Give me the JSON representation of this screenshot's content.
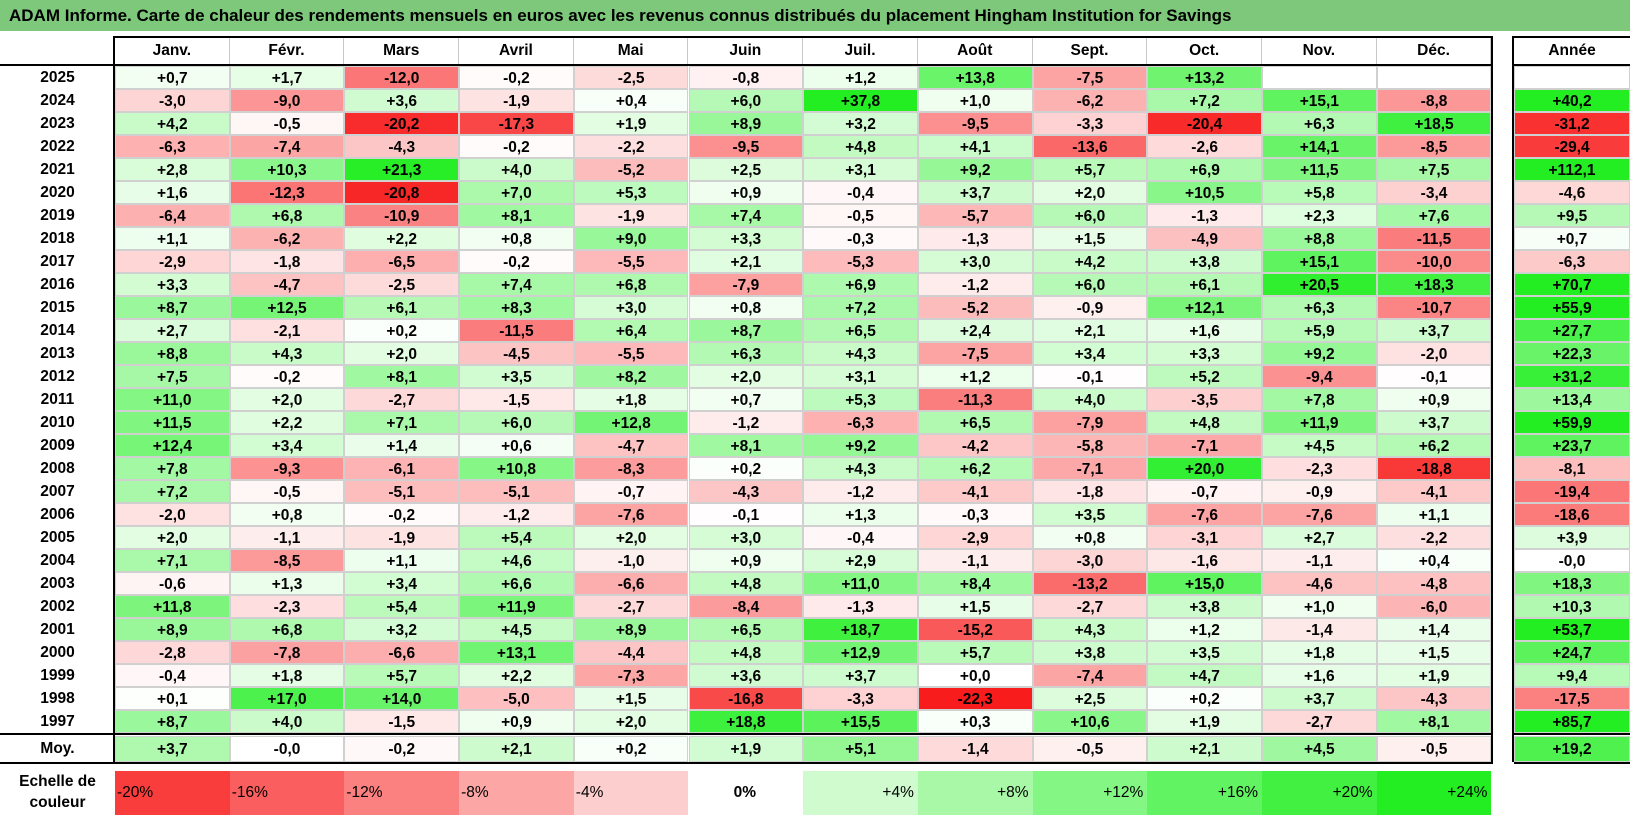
{
  "title": "ADAM Informe. Carte de chaleur des rendements mensuels en euros avec les revenus connus distribués du placement Hingham Institution for Savings",
  "chart_data": {
    "type": "heatmap",
    "title": "ADAM Informe. Carte de chaleur des rendements mensuels en euros avec les revenus connus distribués du placement Hingham Institution for Savings",
    "months": [
      "Janv.",
      "Févr.",
      "Mars",
      "Avril",
      "Mai",
      "Juin",
      "Juil.",
      "Août",
      "Sept.",
      "Oct.",
      "Nov.",
      "Déc."
    ],
    "year_header": "Année",
    "rows": [
      {
        "year": "2025",
        "values": [
          "+0,7",
          "+1,7",
          "-12,0",
          "-0,2",
          "-2,5",
          "-0,8",
          "+1,2",
          "+13,8",
          "-7,5",
          "+13,2",
          "",
          ""
        ],
        "annual": ""
      },
      {
        "year": "2024",
        "values": [
          "-3,0",
          "-9,0",
          "+3,6",
          "-1,9",
          "+0,4",
          "+6,0",
          "+37,8",
          "+1,0",
          "-6,2",
          "+7,2",
          "+15,1",
          "-8,8"
        ],
        "annual": "+40,2"
      },
      {
        "year": "2023",
        "values": [
          "+4,2",
          "-0,5",
          "-20,2",
          "-17,3",
          "+1,9",
          "+8,9",
          "+3,2",
          "-9,5",
          "-3,3",
          "-20,4",
          "+6,3",
          "+18,5"
        ],
        "annual": "-31,2"
      },
      {
        "year": "2022",
        "values": [
          "-6,3",
          "-7,4",
          "-4,3",
          "-0,2",
          "-2,2",
          "-9,5",
          "+4,8",
          "+4,1",
          "-13,6",
          "-2,6",
          "+14,1",
          "-8,5"
        ],
        "annual": "-29,4"
      },
      {
        "year": "2021",
        "values": [
          "+2,8",
          "+10,3",
          "+21,3",
          "+4,0",
          "-5,2",
          "+2,5",
          "+3,1",
          "+9,2",
          "+5,7",
          "+6,9",
          "+11,5",
          "+7,5"
        ],
        "annual": "+112,1"
      },
      {
        "year": "2020",
        "values": [
          "+1,6",
          "-12,3",
          "-20,8",
          "+7,0",
          "+5,3",
          "+0,9",
          "-0,4",
          "+3,7",
          "+2,0",
          "+10,5",
          "+5,8",
          "-3,4"
        ],
        "annual": "-4,6"
      },
      {
        "year": "2019",
        "values": [
          "-6,4",
          "+6,8",
          "-10,9",
          "+8,1",
          "-1,9",
          "+7,4",
          "-0,5",
          "-5,7",
          "+6,0",
          "-1,3",
          "+2,3",
          "+7,6"
        ],
        "annual": "+9,5"
      },
      {
        "year": "2018",
        "values": [
          "+1,1",
          "-6,2",
          "+2,2",
          "+0,8",
          "+9,0",
          "+3,3",
          "-0,3",
          "-1,3",
          "+1,5",
          "-4,9",
          "+8,8",
          "-11,5"
        ],
        "annual": "+0,7"
      },
      {
        "year": "2017",
        "values": [
          "-2,9",
          "-1,8",
          "-6,5",
          "-0,2",
          "-5,5",
          "+2,1",
          "-5,3",
          "+3,0",
          "+4,2",
          "+3,8",
          "+15,1",
          "-10,0"
        ],
        "annual": "-6,3"
      },
      {
        "year": "2016",
        "values": [
          "+3,3",
          "-4,7",
          "-2,5",
          "+7,4",
          "+6,8",
          "-7,9",
          "+6,9",
          "-1,2",
          "+6,0",
          "+6,1",
          "+20,5",
          "+18,3"
        ],
        "annual": "+70,7"
      },
      {
        "year": "2015",
        "values": [
          "+8,7",
          "+12,5",
          "+6,1",
          "+8,3",
          "+3,0",
          "+0,8",
          "+7,2",
          "-5,2",
          "-0,9",
          "+12,1",
          "+6,3",
          "-10,7"
        ],
        "annual": "+55,9"
      },
      {
        "year": "2014",
        "values": [
          "+2,7",
          "-2,1",
          "+0,2",
          "-11,5",
          "+6,4",
          "+8,7",
          "+6,5",
          "+2,4",
          "+2,1",
          "+1,6",
          "+5,9",
          "+3,7"
        ],
        "annual": "+27,7"
      },
      {
        "year": "2013",
        "values": [
          "+8,8",
          "+4,3",
          "+2,0",
          "-4,5",
          "-5,5",
          "+6,3",
          "+4,3",
          "-7,5",
          "+3,4",
          "+3,3",
          "+9,2",
          "-2,0"
        ],
        "annual": "+22,3"
      },
      {
        "year": "2012",
        "values": [
          "+7,5",
          "-0,2",
          "+8,1",
          "+3,5",
          "+8,2",
          "+2,0",
          "+3,1",
          "+1,2",
          "-0,1",
          "+5,2",
          "-9,4",
          "-0,1"
        ],
        "annual": "+31,2"
      },
      {
        "year": "2011",
        "values": [
          "+11,0",
          "+2,0",
          "-2,7",
          "-1,5",
          "+1,8",
          "+0,7",
          "+5,3",
          "-11,3",
          "+4,0",
          "-3,5",
          "+7,8",
          "+0,9"
        ],
        "annual": "+13,4"
      },
      {
        "year": "2010",
        "values": [
          "+11,5",
          "+2,2",
          "+7,1",
          "+6,0",
          "+12,8",
          "-1,2",
          "-6,3",
          "+6,5",
          "-7,9",
          "+4,8",
          "+11,9",
          "+3,7"
        ],
        "annual": "+59,9"
      },
      {
        "year": "2009",
        "values": [
          "+12,4",
          "+3,4",
          "+1,4",
          "+0,6",
          "-4,7",
          "+8,1",
          "+9,2",
          "-4,2",
          "-5,8",
          "-7,1",
          "+4,5",
          "+6,2"
        ],
        "annual": "+23,7"
      },
      {
        "year": "2008",
        "values": [
          "+7,8",
          "-9,3",
          "-6,1",
          "+10,8",
          "-8,3",
          "+0,2",
          "+4,3",
          "+6,2",
          "-7,1",
          "+20,0",
          "-2,3",
          "-18,8"
        ],
        "annual": "-8,1"
      },
      {
        "year": "2007",
        "values": [
          "+7,2",
          "-0,5",
          "-5,1",
          "-5,1",
          "-0,7",
          "-4,3",
          "-1,2",
          "-4,1",
          "-1,8",
          "-0,7",
          "-0,9",
          "-4,1"
        ],
        "annual": "-19,4"
      },
      {
        "year": "2006",
        "values": [
          "-2,0",
          "+0,8",
          "-0,2",
          "-1,2",
          "-7,6",
          "-0,1",
          "+1,3",
          "-0,3",
          "+3,5",
          "-7,6",
          "-7,6",
          "+1,1"
        ],
        "annual": "-18,6"
      },
      {
        "year": "2005",
        "values": [
          "+2,0",
          "-1,1",
          "-1,9",
          "+5,4",
          "+2,0",
          "+3,0",
          "-0,4",
          "-2,9",
          "+0,8",
          "-3,1",
          "+2,7",
          "-2,2"
        ],
        "annual": "+3,9"
      },
      {
        "year": "2004",
        "values": [
          "+7,1",
          "-8,5",
          "+1,1",
          "+4,6",
          "-1,0",
          "+0,9",
          "+2,9",
          "-1,1",
          "-3,0",
          "-1,6",
          "-1,1",
          "+0,4"
        ],
        "annual": "-0,0"
      },
      {
        "year": "2003",
        "values": [
          "-0,6",
          "+1,3",
          "+3,4",
          "+6,6",
          "-6,6",
          "+4,8",
          "+11,0",
          "+8,4",
          "-13,2",
          "+15,0",
          "-4,6",
          "-4,8"
        ],
        "annual": "+18,3"
      },
      {
        "year": "2002",
        "values": [
          "+11,8",
          "-2,3",
          "+5,4",
          "+11,9",
          "-2,7",
          "-8,4",
          "-1,3",
          "+1,5",
          "-2,7",
          "+3,8",
          "+1,0",
          "-6,0"
        ],
        "annual": "+10,3"
      },
      {
        "year": "2001",
        "values": [
          "+8,9",
          "+6,8",
          "+3,2",
          "+4,5",
          "+8,9",
          "+6,5",
          "+18,7",
          "-15,2",
          "+4,3",
          "+1,2",
          "-1,4",
          "+1,4"
        ],
        "annual": "+53,7"
      },
      {
        "year": "2000",
        "values": [
          "-2,8",
          "-7,8",
          "-6,6",
          "+13,1",
          "-4,4",
          "+4,8",
          "+12,9",
          "+5,7",
          "+3,8",
          "+3,5",
          "+1,8",
          "+1,5"
        ],
        "annual": "+24,7"
      },
      {
        "year": "1999",
        "values": [
          "-0,4",
          "+1,8",
          "+5,7",
          "+2,2",
          "-7,3",
          "+3,6",
          "+3,7",
          "+0,0",
          "-7,4",
          "+4,7",
          "+1,6",
          "+1,9"
        ],
        "annual": "+9,4"
      },
      {
        "year": "1998",
        "values": [
          "+0,1",
          "+17,0",
          "+14,0",
          "-5,0",
          "+1,5",
          "-16,8",
          "-3,3",
          "-22,3",
          "+2,5",
          "+0,2",
          "+3,7",
          "-4,3"
        ],
        "annual": "-17,5"
      },
      {
        "year": "1997",
        "values": [
          "+8,7",
          "+4,0",
          "-1,5",
          "+0,9",
          "+2,0",
          "+18,8",
          "+15,5",
          "+0,3",
          "+10,6",
          "+1,9",
          "-2,7",
          "+8,1"
        ],
        "annual": "+85,7"
      }
    ],
    "average": {
      "label": "Moy.",
      "values": [
        "+3,7",
        "-0,0",
        "-0,2",
        "+2,1",
        "+0,2",
        "+1,9",
        "+5,1",
        "-1,4",
        "-0,5",
        "+2,1",
        "+4,5",
        "-0,5"
      ],
      "annual": "+19,2"
    },
    "legend": {
      "title_line1": "Echelle de",
      "title_line2": "couleur",
      "labels": [
        "-20%",
        "-16%",
        "-12%",
        "-8%",
        "-4%",
        "0%",
        "+4%",
        "+8%",
        "+12%",
        "+16%",
        "+20%",
        "+24%"
      ]
    },
    "colors": {
      "negative_max": "#f81c1c",
      "neutral": "#ffffff",
      "positive_max": "#22ee22",
      "title_bar": "#7dc87a"
    }
  }
}
